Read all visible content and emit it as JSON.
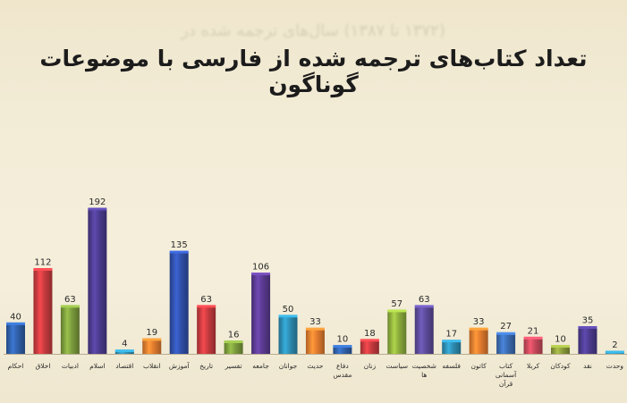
{
  "bleed_text": "(۱۳۷۲ تا ۱۳۸۷) سال‌های ترجمه شده در",
  "chart_data": {
    "type": "bar",
    "title": "تعداد کتاب‌های ترجمه شده از فارسی با موضوعات گوناگون",
    "xlabel": "",
    "ylabel": "",
    "ylim": [
      0,
      200
    ],
    "grid": false,
    "categories": [
      "احکام",
      "اخلاق",
      "ادبیات",
      "اسلام",
      "اقتصاد",
      "انقلاب",
      "آموزش",
      "تاریخ",
      "تفسیر",
      "جامعه",
      "جوانان",
      "حدیث",
      "دفاع مقدس",
      "زنان",
      "سیاست",
      "شخصیت ها",
      "فلسفه",
      "کاتون",
      "کتاب آسمانی قرآن",
      "کربلا",
      "کودکان",
      "نقد",
      "وحدت"
    ],
    "values": [
      40,
      112,
      63,
      192,
      4,
      19,
      135,
      63,
      16,
      106,
      50,
      33,
      10,
      18,
      57,
      63,
      17,
      33,
      27,
      21,
      10,
      35,
      2
    ],
    "colors": [
      "#2f5fa8",
      "#c43a3e",
      "#7a9a3c",
      "#4b3b8c",
      "#2d8bb0",
      "#e07a2e",
      "#2f4fa8",
      "#c43a3e",
      "#7a9a3c",
      "#5a3a90",
      "#2d8bb0",
      "#e07a2e",
      "#2f5fa8",
      "#c43a3e",
      "#8bab3c",
      "#5a4a98",
      "#2d8bb0",
      "#e07a2e",
      "#3a6ab0",
      "#c4485a",
      "#8a9a3c",
      "#4b3b8c",
      "#2d8bb0"
    ]
  }
}
